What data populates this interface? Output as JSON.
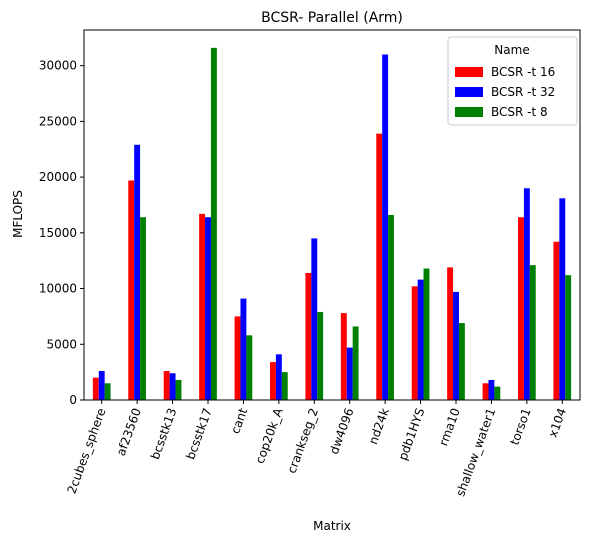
{
  "chart_data": {
    "type": "bar",
    "title": "BCSR- Parallel (Arm)",
    "xlabel": "Matrix",
    "ylabel": "MFLOPS",
    "ylim": [
      0,
      33200
    ],
    "yticks": [
      0,
      5000,
      10000,
      15000,
      20000,
      25000,
      30000
    ],
    "grid": false,
    "legend": {
      "title": "Name",
      "position": "top-right"
    },
    "categories": [
      "2cubes_sphere",
      "af23560",
      "bcsstk13",
      "bcsstk17",
      "cant",
      "cop20k_A",
      "crankseg_2",
      "dw4096",
      "nd24k",
      "pdb1HYS",
      "rma10",
      "shallow_water1",
      "torso1",
      "x104"
    ],
    "series": [
      {
        "name": "BCSR -t 16",
        "color": "#ff0000",
        "values": [
          2000,
          19700,
          2600,
          16700,
          7500,
          3400,
          11400,
          7800,
          23900,
          10200,
          11900,
          1500,
          16400,
          14200
        ]
      },
      {
        "name": "BCSR -t 32",
        "color": "#0000ff",
        "values": [
          2600,
          22900,
          2400,
          16400,
          9100,
          4100,
          14500,
          4700,
          31000,
          10800,
          9700,
          1800,
          19000,
          18100
        ]
      },
      {
        "name": "BCSR -t 8",
        "color": "#008000",
        "values": [
          1500,
          16400,
          1800,
          31600,
          5800,
          2500,
          7900,
          6600,
          16600,
          11800,
          6900,
          1200,
          12100,
          11200
        ]
      }
    ]
  }
}
